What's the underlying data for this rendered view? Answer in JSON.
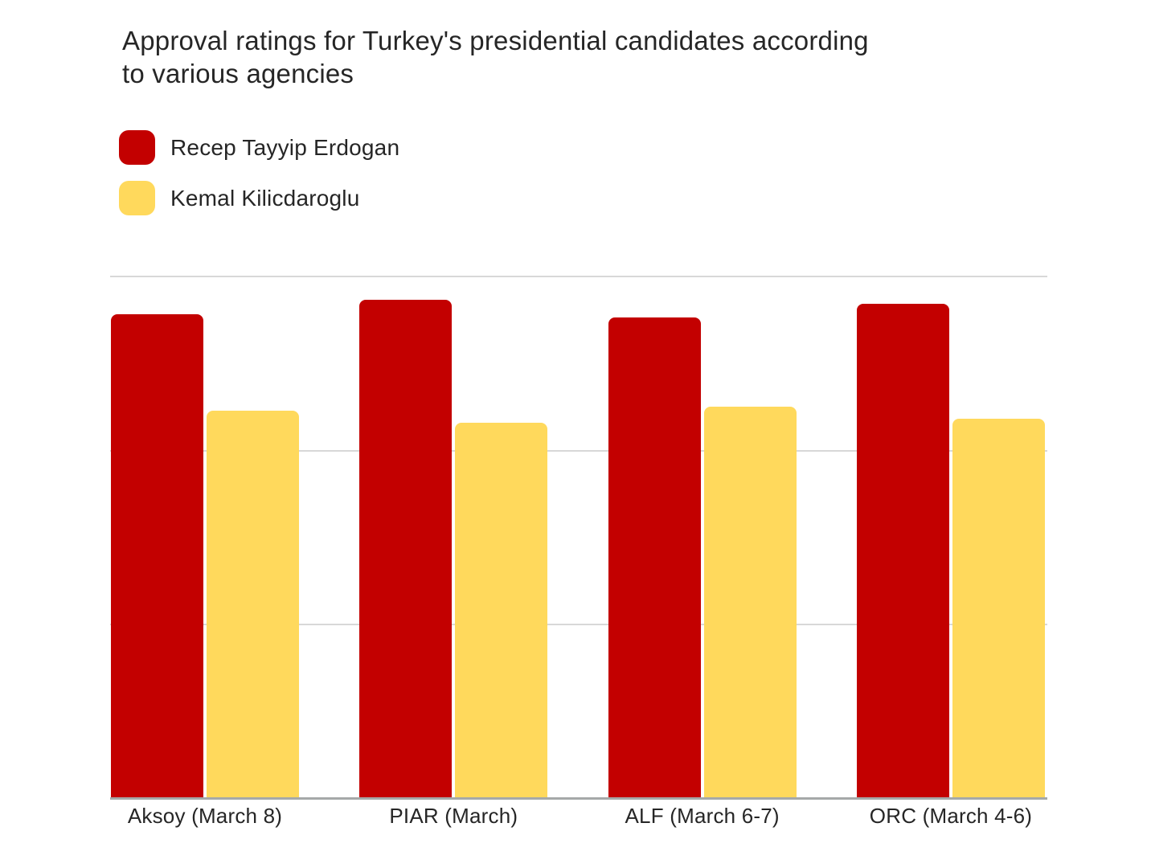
{
  "chart_data": {
    "type": "bar",
    "title": "Approval ratings for Turkey's presidential candidates according\nto various agencies",
    "categories": [
      "Aksoy (March 8)",
      "PIAR (March)",
      "ALF (March 6-7)",
      "ORC (March 4-6)"
    ],
    "series": [
      {
        "name": "Recep Tayyip Erdogan",
        "color": "#c30000",
        "values": [
          41.7,
          42.9,
          41.4,
          42.6
        ]
      },
      {
        "name": "Kemal Kilicdaroglu",
        "color": "#ffd95c",
        "values": [
          33.4,
          32.3,
          33.7,
          32.7
        ]
      }
    ],
    "xlabel": "",
    "ylabel": "",
    "ylim": [
      0,
      45
    ],
    "gridlines": {
      "visible": true,
      "y_values": [
        15,
        30,
        45
      ],
      "note": "no numeric y-axis tick labels are shown; values estimated from gridline spacing"
    },
    "legend_position": "top-left",
    "bar_corner": "rounded-top"
  },
  "colors": {
    "erdogan_red": "#c30000",
    "kilicdaroglu_yellow": "#ffd95c",
    "gridline": "#d8d8d8",
    "axis_line": "#a6a9a9",
    "text": "#262626",
    "background": "#ffffff"
  }
}
